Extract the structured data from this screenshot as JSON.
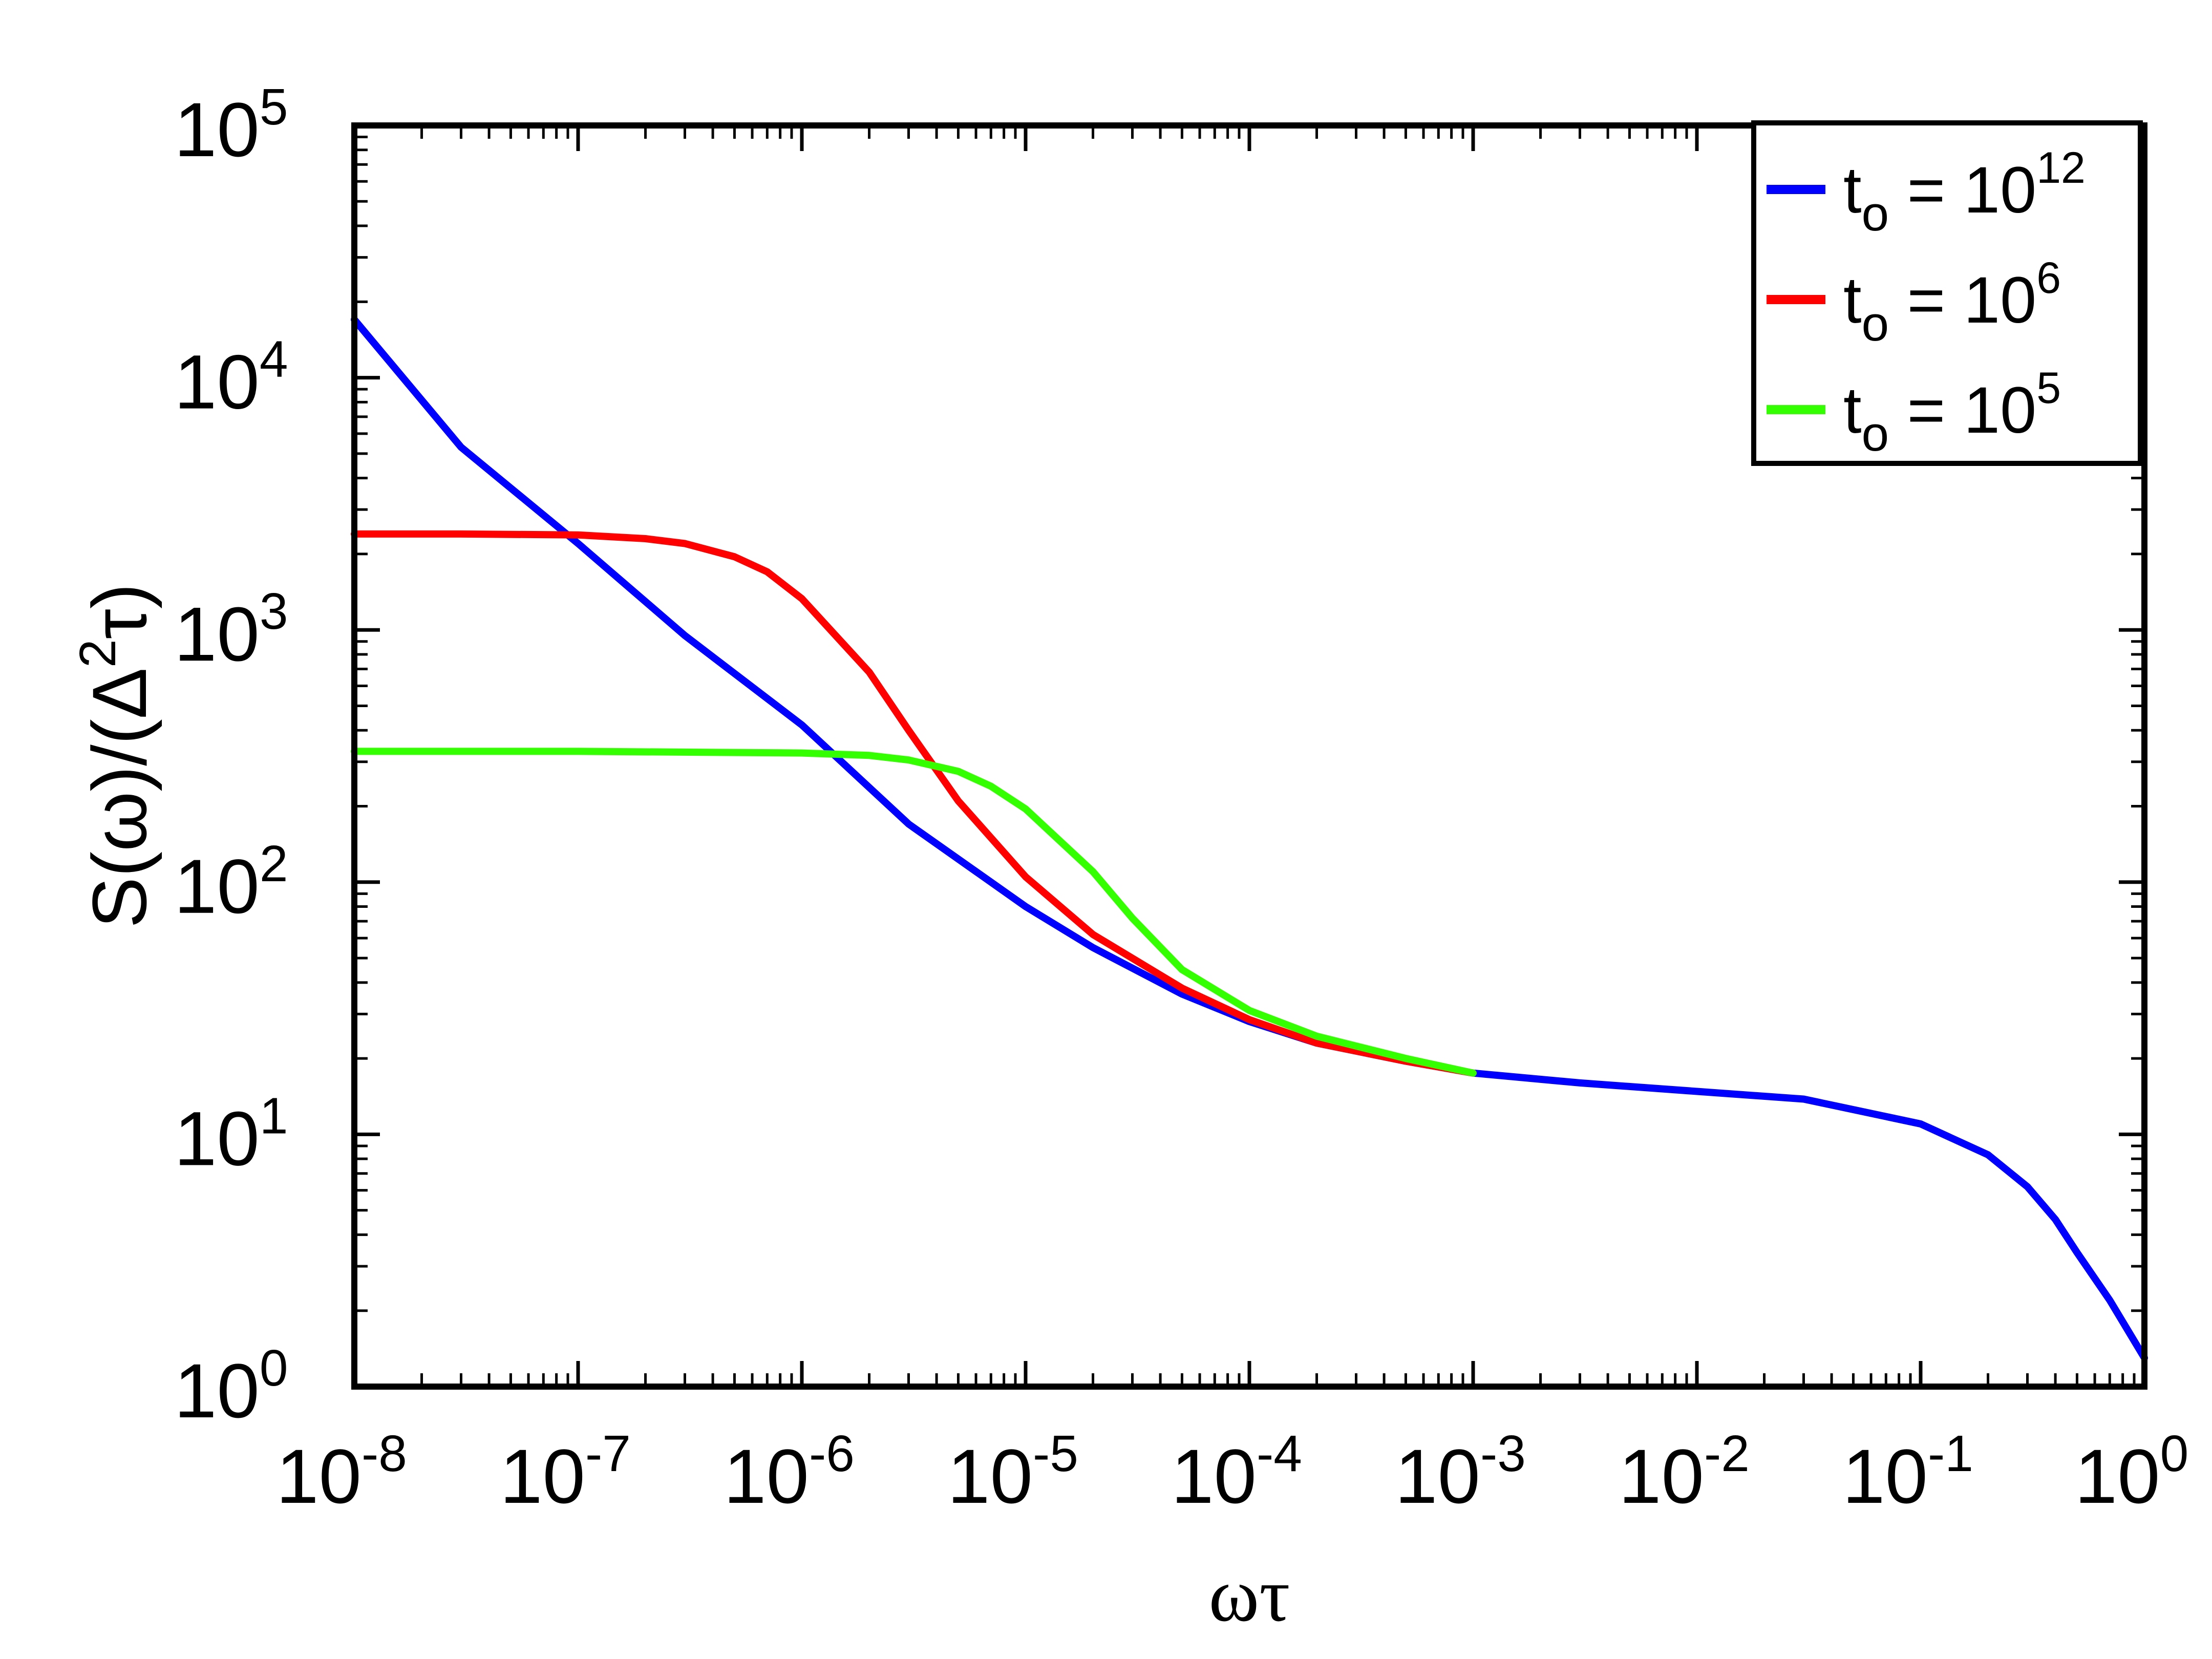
{
  "chart_data": {
    "type": "line",
    "xlabel": "ωτ",
    "ylabel": "S(ω)/(Δ²τ)",
    "ylabel_parts": {
      "pre": "S(ω)/(Δ",
      "sup": "2",
      "post": "τ)"
    },
    "xscale": "log",
    "yscale": "log",
    "xlim": [
      1e-08,
      1
    ],
    "ylim": [
      1,
      100000
    ],
    "x_ticks": [
      {
        "base": "10",
        "exp": "-8"
      },
      {
        "base": "10",
        "exp": "-7"
      },
      {
        "base": "10",
        "exp": "-6"
      },
      {
        "base": "10",
        "exp": "-5"
      },
      {
        "base": "10",
        "exp": "-4"
      },
      {
        "base": "10",
        "exp": "-3"
      },
      {
        "base": "10",
        "exp": "-2"
      },
      {
        "base": "10",
        "exp": "-1"
      },
      {
        "base": "10",
        "exp": "0"
      }
    ],
    "y_ticks": [
      {
        "base": "10",
        "exp": "0"
      },
      {
        "base": "10",
        "exp": "1"
      },
      {
        "base": "10",
        "exp": "2"
      },
      {
        "base": "10",
        "exp": "3"
      },
      {
        "base": "10",
        "exp": "4"
      },
      {
        "base": "10",
        "exp": "5"
      }
    ],
    "legend_position": "top-right",
    "grid": false,
    "series": [
      {
        "name": "tₒ = 10¹²",
        "label": {
          "var": "t",
          "sub": "o",
          "eq": " = 10",
          "sup": "12"
        },
        "color": "#0000ff",
        "x": [
          1e-08,
          3e-08,
          1e-07,
          3e-07,
          1e-06,
          3e-06,
          1e-05,
          2e-05,
          5e-05,
          0.0001,
          0.0002,
          0.0005,
          0.001,
          0.003,
          0.01,
          0.03,
          0.1,
          0.2,
          0.3,
          0.4,
          0.5,
          0.7,
          1.0
        ],
        "y": [
          17000,
          5300,
          2200,
          950,
          420,
          170,
          80,
          55,
          36,
          28,
          23,
          19.5,
          17.5,
          16,
          14.8,
          13.8,
          11,
          8.3,
          6.2,
          4.6,
          3.4,
          2.2,
          1.3
        ]
      },
      {
        "name": "tₒ = 10⁶",
        "label": {
          "var": "t",
          "sub": "o",
          "eq": " = 10",
          "sup": "6"
        },
        "color": "#ff0000",
        "x": [
          1e-08,
          3e-08,
          1e-07,
          2e-07,
          3e-07,
          5e-07,
          7e-07,
          1e-06,
          2e-06,
          3e-06,
          5e-06,
          1e-05,
          2e-05,
          5e-05,
          0.0001,
          0.0002,
          0.0005,
          0.001
        ],
        "y": [
          2400,
          2400,
          2380,
          2300,
          2200,
          1950,
          1700,
          1330,
          680,
          400,
          210,
          105,
          62,
          38,
          28.5,
          23,
          19.5,
          17.5
        ]
      },
      {
        "name": "tₒ = 10⁵",
        "label": {
          "var": "t",
          "sub": "o",
          "eq": " = 10",
          "sup": "5"
        },
        "color": "#33ff00",
        "x": [
          1e-08,
          1e-07,
          1e-06,
          2e-06,
          3e-06,
          5e-06,
          7e-06,
          1e-05,
          2e-05,
          3e-05,
          5e-05,
          0.0001,
          0.0002,
          0.0005,
          0.001
        ],
        "y": [
          330,
          330,
          325,
          318,
          305,
          275,
          240,
          195,
          110,
          72,
          45,
          31,
          24.5,
          20,
          17.5
        ]
      }
    ]
  }
}
